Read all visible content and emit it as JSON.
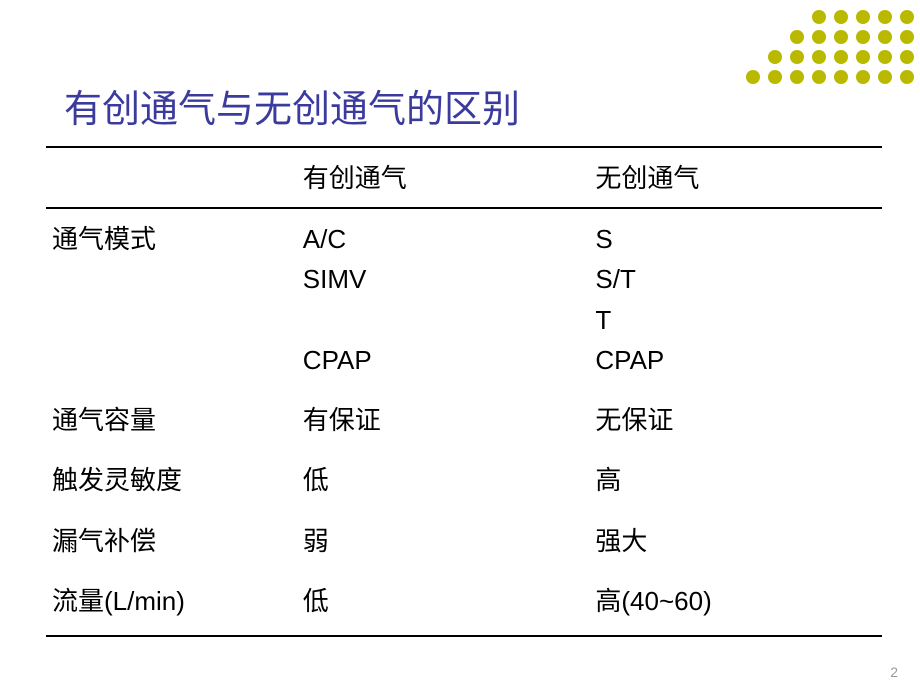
{
  "title": "有创通气与无创通气的区别",
  "decoration": {
    "dot_color": "#b9b900",
    "rows": [
      5,
      6,
      7,
      8
    ]
  },
  "table": {
    "headers": [
      "",
      "有创通气",
      "无创通气"
    ],
    "rows": [
      {
        "label": "通气模式",
        "col1_lines": [
          "A/C",
          "SIMV",
          "",
          "CPAP"
        ],
        "col2_lines": [
          "S",
          "S/T",
          "T",
          "CPAP"
        ],
        "col1_class": "arial",
        "col2_class": "arial"
      },
      {
        "label": "通气容量",
        "col1": "有保证",
        "col2": "无保证"
      },
      {
        "label": "触发灵敏度",
        "col1": "低",
        "col2": "高"
      },
      {
        "label": "漏气补偿",
        "col1": "弱",
        "col2": "强大"
      },
      {
        "label": "流量(L/min)",
        "col1": "低",
        "col2": "高(40~60)"
      }
    ]
  },
  "page_number": "2"
}
